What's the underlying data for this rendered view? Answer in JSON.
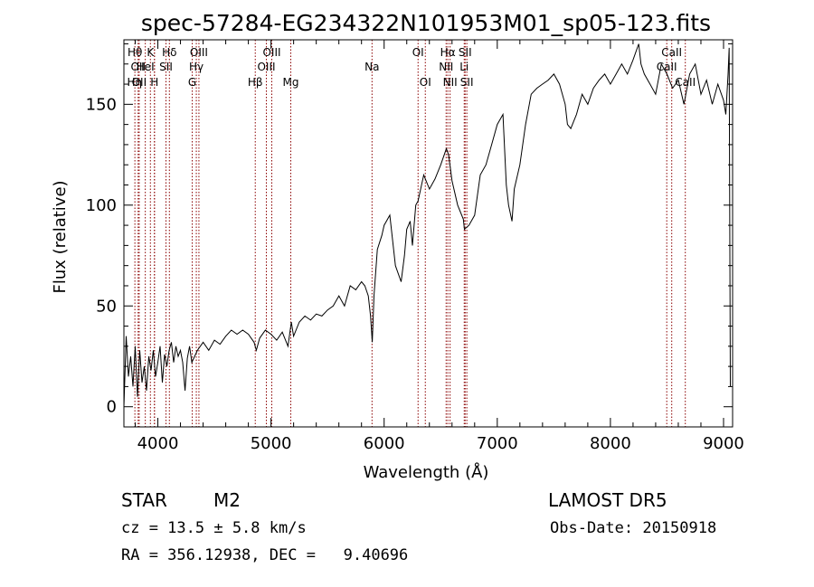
{
  "chart_data": {
    "type": "line",
    "title": "spec-57284-EG234322N101953M01_sp05-123.fits",
    "xlabel": "Wavelength (Å)",
    "ylabel": "Flux (relative)",
    "xlim": [
      3700,
      9080
    ],
    "ylim": [
      -10,
      182
    ],
    "xticks": [
      4000,
      5000,
      6000,
      7000,
      8000,
      9000
    ],
    "yticks": [
      0,
      50,
      100,
      150
    ],
    "grid": false,
    "line_color": "#000000",
    "marker_color": "#8b0000",
    "series": [
      {
        "x": [
          3700,
          3720,
          3740,
          3760,
          3780,
          3800,
          3820,
          3840,
          3860,
          3880,
          3900,
          3920,
          3940,
          3960,
          3980,
          4000,
          4020,
          4040,
          4060,
          4080,
          4100,
          4120,
          4140,
          4160,
          4180,
          4200,
          4220,
          4240,
          4260,
          4280,
          4300,
          4350,
          4400,
          4450,
          4500,
          4550,
          4600,
          4650,
          4700,
          4750,
          4800,
          4850,
          4870,
          4900,
          4950,
          5000,
          5050,
          5100,
          5150,
          5180,
          5200,
          5250,
          5300,
          5350,
          5400,
          5450,
          5500,
          5550,
          5600,
          5650,
          5700,
          5750,
          5800,
          5830,
          5860,
          5880,
          5895,
          5910,
          5940,
          5980,
          6000,
          6050,
          6100,
          6150,
          6180,
          6200,
          6230,
          6250,
          6280,
          6300,
          6350,
          6400,
          6450,
          6500,
          6550,
          6570,
          6600,
          6650,
          6700,
          6710,
          6750,
          6800,
          6850,
          6900,
          6950,
          7000,
          7050,
          7080,
          7100,
          7130,
          7150,
          7200,
          7250,
          7300,
          7350,
          7400,
          7450,
          7500,
          7550,
          7600,
          7620,
          7650,
          7700,
          7750,
          7800,
          7850,
          7900,
          7950,
          8000,
          8050,
          8100,
          8150,
          8200,
          8250,
          8270,
          8300,
          8350,
          8400,
          8450,
          8500,
          8550,
          8600,
          8650,
          8700,
          8750,
          8800,
          8850,
          8900,
          8950,
          9000,
          9020,
          9040,
          9050,
          9060
        ],
        "y": [
          0,
          35,
          15,
          25,
          10,
          30,
          5,
          28,
          12,
          20,
          8,
          25,
          18,
          28,
          15,
          22,
          30,
          12,
          26,
          20,
          28,
          32,
          22,
          30,
          25,
          28,
          22,
          8,
          24,
          30,
          22,
          28,
          32,
          28,
          33,
          31,
          35,
          38,
          36,
          38,
          36,
          32,
          28,
          34,
          38,
          36,
          33,
          37,
          30,
          42,
          35,
          42,
          45,
          43,
          46,
          45,
          48,
          50,
          55,
          50,
          60,
          58,
          62,
          60,
          55,
          45,
          32,
          55,
          78,
          85,
          90,
          95,
          70,
          62,
          75,
          88,
          92,
          80,
          100,
          102,
          115,
          108,
          113,
          120,
          128,
          125,
          112,
          100,
          93,
          88,
          90,
          95,
          115,
          120,
          130,
          140,
          145,
          110,
          100,
          92,
          108,
          120,
          140,
          155,
          158,
          160,
          162,
          165,
          160,
          150,
          140,
          138,
          145,
          155,
          150,
          158,
          162,
          165,
          160,
          165,
          170,
          165,
          172,
          180,
          170,
          165,
          160,
          155,
          170,
          165,
          158,
          162,
          150,
          165,
          170,
          155,
          162,
          150,
          160,
          152,
          145,
          165,
          178,
          10
        ]
      }
    ],
    "line_markers": [
      {
        "x": 3797,
        "label": "Hθ",
        "row": 0
      },
      {
        "x": 3826,
        "label": "OII",
        "row": 1
      },
      {
        "x": 3835,
        "label": "OII",
        "row": 2
      },
      {
        "x": 3889,
        "label": "HeI",
        "row": 1
      },
      {
        "x": 3934,
        "label": "K",
        "row": 0
      },
      {
        "x": 3970,
        "label": "H",
        "row": 2
      },
      {
        "x": 3970,
        "label": "Hη",
        "row": 2,
        "dx": -22
      },
      {
        "x": 4072,
        "label": "SII",
        "row": 1
      },
      {
        "x": 4102,
        "label": "Hδ",
        "row": 0
      },
      {
        "x": 4304,
        "label": "G",
        "row": 2
      },
      {
        "x": 4340,
        "label": "Hγ",
        "row": 1
      },
      {
        "x": 4363,
        "label": "OIII",
        "row": 0
      },
      {
        "x": 4861,
        "label": "Hβ",
        "row": 2
      },
      {
        "x": 4959,
        "label": "OIII",
        "row": 1
      },
      {
        "x": 5007,
        "label": "OIII",
        "row": 0
      },
      {
        "x": 5175,
        "label": "Mg",
        "row": 2
      },
      {
        "x": 5893,
        "label": "Na",
        "row": 1
      },
      {
        "x": 6300,
        "label": "OI",
        "row": 0
      },
      {
        "x": 6364,
        "label": "OI",
        "row": 2
      },
      {
        "x": 6548,
        "label": "NII",
        "row": 1
      },
      {
        "x": 6563,
        "label": "Hα",
        "row": 0
      },
      {
        "x": 6583,
        "label": "NII",
        "row": 2
      },
      {
        "x": 6708,
        "label": "Li",
        "row": 1
      },
      {
        "x": 6716,
        "label": "SII",
        "row": 0
      },
      {
        "x": 6731,
        "label": "SII",
        "row": 2
      },
      {
        "x": 8498,
        "label": "CaII",
        "row": 1
      },
      {
        "x": 8542,
        "label": "CaII",
        "row": 0
      },
      {
        "x": 8662,
        "label": "CaII",
        "row": 2
      }
    ]
  },
  "info": {
    "object_class": "STAR",
    "subclass": "M2",
    "survey": "LAMOST DR5",
    "cz": "cz = 13.5 ± 5.8 km/s",
    "obs_date": "Obs-Date: 20150918",
    "coords": "RA = 356.12938, DEC =   9.40696"
  }
}
